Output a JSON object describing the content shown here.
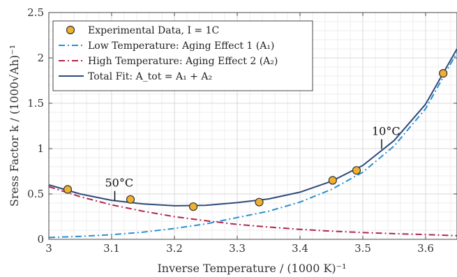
{
  "chart_data": {
    "type": "line",
    "xlabel": "Inverse Temperature / (1000 K)⁻¹",
    "ylabel": "Sress Factor k / (1000√Ah)⁻¹",
    "xlim": [
      3.0,
      3.65
    ],
    "ylim": [
      0,
      2.5
    ],
    "x_ticks": [
      3.0,
      3.1,
      3.2,
      3.3,
      3.4,
      3.5,
      3.6
    ],
    "x_tick_labels": [
      "3",
      "3.1",
      "3.2",
      "3.3",
      "3.4",
      "3.5",
      "3.6"
    ],
    "y_ticks": [
      0,
      0.5,
      1.0,
      1.5,
      2.0,
      2.5
    ],
    "y_tick_labels": [
      "0",
      "0.5",
      "1",
      "1.5",
      "2",
      "2.5"
    ],
    "grid": true,
    "legend_position": "top-left",
    "series": [
      {
        "name": "Experimental Data, I = 1C",
        "kind": "scatter",
        "color": "#f0b030",
        "x": [
          3.03,
          3.13,
          3.23,
          3.335,
          3.452,
          3.49,
          3.628
        ],
        "y": [
          0.55,
          0.44,
          0.36,
          0.41,
          0.65,
          0.76,
          1.83
        ]
      },
      {
        "name": "Low Temperature: Aging Effect 1 (A₁)",
        "kind": "line",
        "style": "dashdot",
        "color": "#2a8fd0",
        "x": [
          3.0,
          3.05,
          3.1,
          3.15,
          3.2,
          3.25,
          3.3,
          3.35,
          3.4,
          3.45,
          3.5,
          3.55,
          3.6,
          3.65
        ],
        "y": [
          0.02,
          0.033,
          0.051,
          0.079,
          0.12,
          0.17,
          0.24,
          0.31,
          0.41,
          0.55,
          0.74,
          1.03,
          1.44,
          2.06
        ]
      },
      {
        "name": "High Temperature: Aging Effect 2 (A₂)",
        "kind": "line",
        "style": "dashdot",
        "color": "#b0254a",
        "x": [
          3.0,
          3.05,
          3.1,
          3.15,
          3.2,
          3.25,
          3.3,
          3.35,
          3.4,
          3.45,
          3.5,
          3.55,
          3.6,
          3.65
        ],
        "y": [
          0.58,
          0.47,
          0.38,
          0.31,
          0.25,
          0.205,
          0.165,
          0.135,
          0.11,
          0.09,
          0.075,
          0.062,
          0.052,
          0.04
        ]
      },
      {
        "name": "Total Fit: A_tot = A₁ + A₂",
        "kind": "line",
        "style": "solid",
        "color": "#2e4a7a",
        "x": [
          3.0,
          3.05,
          3.1,
          3.15,
          3.2,
          3.25,
          3.3,
          3.35,
          3.4,
          3.45,
          3.5,
          3.55,
          3.6,
          3.65
        ],
        "y": [
          0.6,
          0.5,
          0.43,
          0.39,
          0.37,
          0.375,
          0.405,
          0.445,
          0.52,
          0.64,
          0.815,
          1.09,
          1.49,
          2.1
        ]
      }
    ],
    "annotations": [
      {
        "text": "50°C",
        "x": 3.105,
        "y": 0.41
      },
      {
        "text": "10°C",
        "x": 3.53,
        "y": 0.98
      }
    ]
  }
}
